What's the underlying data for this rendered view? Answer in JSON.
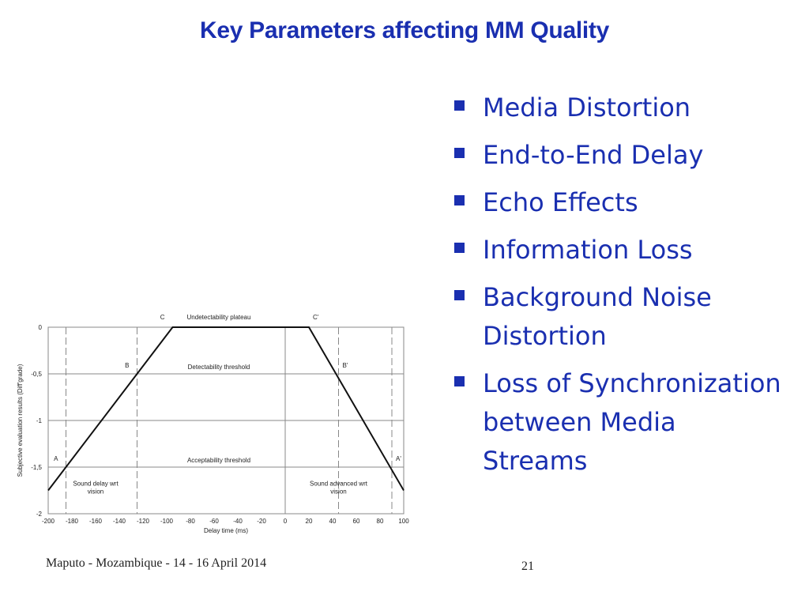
{
  "slide": {
    "title": "Key Parameters affecting MM Quality",
    "footer_left": "Maputo - Mozambique - 14 - 16 April 2014",
    "page_number": "21",
    "accent_color": "#1a2fb0"
  },
  "bullets": [
    "Media Distortion",
    "End-to-End Delay",
    "Echo Effects",
    "Information Loss",
    "Background Noise Distortion",
    "Loss of Synchronization between Media Streams"
  ],
  "chart_data": {
    "type": "line",
    "xlabel": "Delay time (ms)",
    "ylabel": "Subjective evaluation results (Diff'grade)",
    "xlim": [
      -200,
      100
    ],
    "ylim": [
      -2,
      0
    ],
    "x_ticks": [
      -200,
      -180,
      -160,
      -140,
      -120,
      -100,
      -80,
      -60,
      -40,
      -20,
      0,
      20,
      40,
      60,
      80,
      100
    ],
    "y_ticks": [
      {
        "value": 0,
        "label": "0"
      },
      {
        "value": -0.5,
        "label": "-0,5"
      },
      {
        "value": -1,
        "label": "-1"
      },
      {
        "value": -1.5,
        "label": "-1,5"
      },
      {
        "value": -2,
        "label": "-2"
      }
    ],
    "grid": true,
    "series": [
      {
        "x": [
          -200,
          -95,
          20,
          100
        ],
        "values": [
          -1.75,
          0,
          0,
          -1.75
        ]
      }
    ],
    "thresholds": [
      {
        "label": "Undetectability plateau",
        "value": 0
      },
      {
        "label": "Detectability threshold",
        "value": -0.5
      },
      {
        "label": "Acceptability threshold",
        "value": -1.5
      }
    ],
    "vlines": [
      -185,
      -125,
      45,
      90
    ],
    "point_labels": [
      {
        "label": "A",
        "x": -185,
        "y": -1.5
      },
      {
        "label": "B",
        "x": -125,
        "y": -0.5
      },
      {
        "label": "C",
        "x": -95,
        "y": 0
      },
      {
        "label": "C'",
        "x": 20,
        "y": 0
      },
      {
        "label": "B'",
        "x": 45,
        "y": -0.5
      },
      {
        "label": "A'",
        "x": 90,
        "y": -1.5
      }
    ],
    "region_labels": [
      {
        "label": "Sound delay wrt vision",
        "x": -160,
        "y": -1.7
      },
      {
        "label": "Sound advanced wrt vision",
        "x": 45,
        "y": -1.7
      }
    ]
  }
}
